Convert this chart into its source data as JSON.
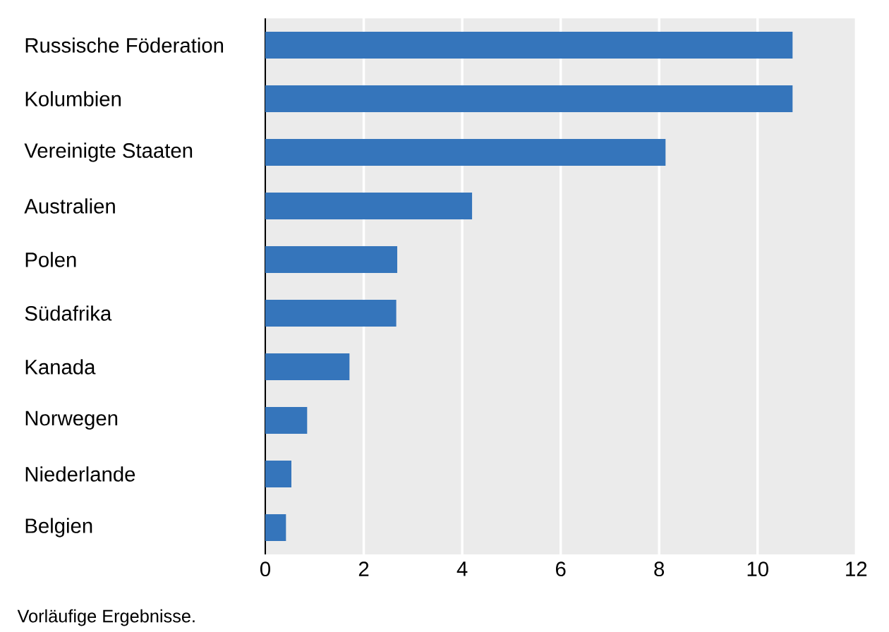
{
  "chart_data": {
    "type": "bar",
    "orientation": "horizontal",
    "categories": [
      "Russische Föderation",
      "Kolumbien",
      "Vereinigte Staaten",
      "Australien",
      "Polen",
      "Südafrika",
      "Kanada",
      "Norwegen",
      "Niederlande",
      "Belgien"
    ],
    "values": [
      10.71,
      10.71,
      8.13,
      4.2,
      2.68,
      2.66,
      1.71,
      0.85,
      0.53,
      0.42
    ],
    "color": "#3575bb",
    "xlim": [
      0,
      12
    ],
    "xticks": [
      0,
      2,
      4,
      6,
      8,
      10,
      12
    ],
    "grid": "x",
    "annotations": [
      "Vorläufige Ergebnisse."
    ]
  }
}
